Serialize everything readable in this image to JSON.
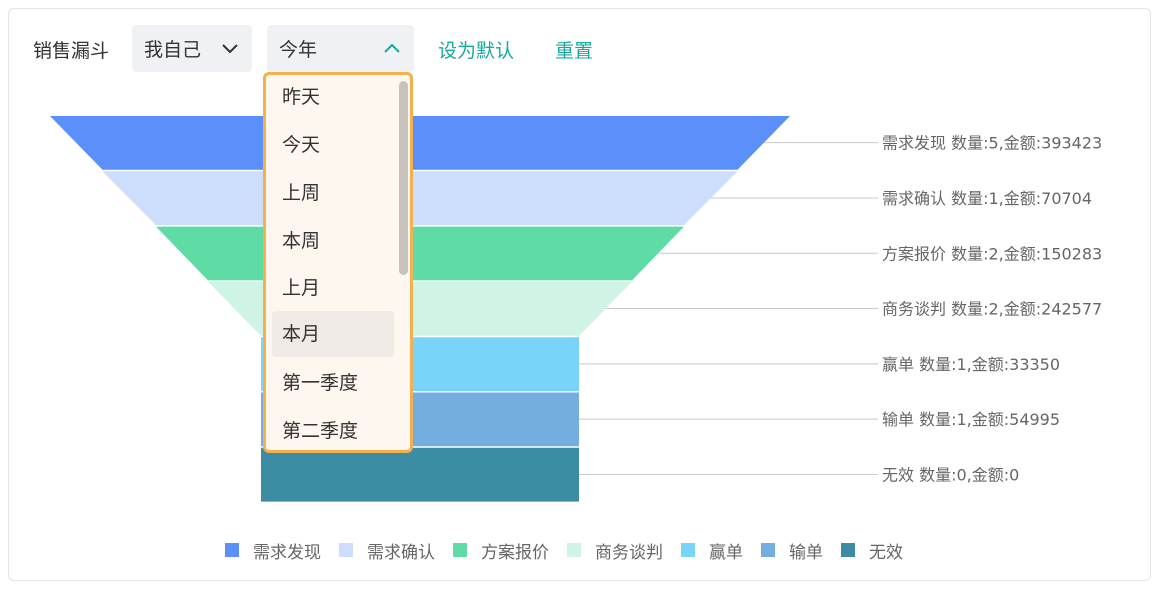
{
  "toolbar": {
    "title": "销售漏斗",
    "owner_select": {
      "value": "我自己",
      "icon": "chevron-down-icon"
    },
    "period_select": {
      "value": "今年",
      "icon": "chevron-up-icon",
      "expanded": true
    },
    "set_default_label": "设为默认",
    "reset_label": "重置"
  },
  "dropdown": {
    "options": [
      "昨天",
      "今天",
      "上周",
      "本周",
      "上月",
      "本月",
      "第一季度",
      "第二季度"
    ],
    "highlighted": "本月"
  },
  "colors": {
    "accent": "#18a8a0",
    "dropdown_border": "#f2b04e",
    "stages": [
      "#5b8ff9",
      "#cddefc",
      "#5fdca6",
      "#cff3e4",
      "#78d4f9",
      "#74aee0",
      "#3c8ca3"
    ]
  },
  "chart_data": {
    "type": "funnel",
    "stages": [
      {
        "name": "需求发现",
        "label": "需求发现 数量:5,金额:393423",
        "count": 5,
        "amount": 393423
      },
      {
        "name": "需求确认",
        "label": "需求确认 数量:1,金额:70704",
        "count": 1,
        "amount": 70704
      },
      {
        "name": "方案报价",
        "label": "方案报价 数量:2,金额:150283",
        "count": 2,
        "amount": 150283
      },
      {
        "name": "商务谈判",
        "label": "商务谈判 数量:2,金额:242577",
        "count": 2,
        "amount": 242577
      },
      {
        "name": "赢单",
        "label": "赢单 数量:1,金额:33350",
        "count": 1,
        "amount": 33350
      },
      {
        "name": "输单",
        "label": "输单 数量:1,金额:54995",
        "count": 1,
        "amount": 54995
      },
      {
        "name": "无效",
        "label": "无效 数量:0,金额:0",
        "count": 0,
        "amount": 0
      }
    ],
    "legend": [
      "需求发现",
      "需求确认",
      "方案报价",
      "商务谈判",
      "赢单",
      "输单",
      "无效"
    ]
  }
}
